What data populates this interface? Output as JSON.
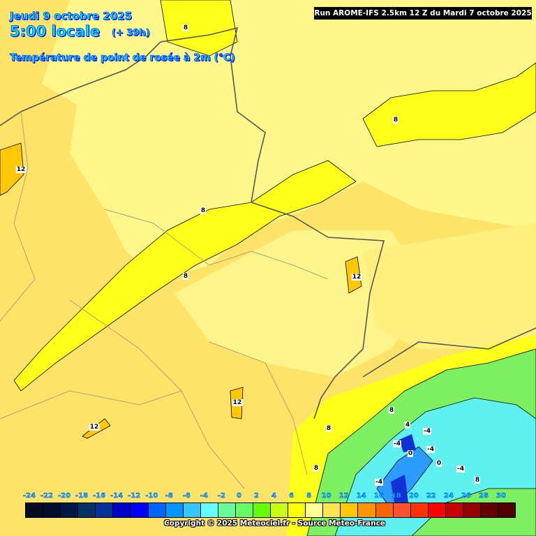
{
  "header": {
    "date": "Jeudi 9 octobre 2025",
    "time": "5:00 locale",
    "lead": "(+ 39h)",
    "variable": "Température de point de rosée à 2m (°C)",
    "run": "Run AROME-IFS 2.5km 12 Z du Mardi 7 octobre 2025"
  },
  "map": {
    "contour_labels": [
      "8",
      "12",
      "8",
      "8",
      "8",
      "12",
      "12",
      "12",
      "8",
      "4",
      "-4",
      "8",
      "-4",
      "0",
      "-4",
      "0",
      "8",
      "-4",
      "-4",
      "8"
    ]
  },
  "legend": {
    "ticks": [
      "-24",
      "-22",
      "-20",
      "-18",
      "-16",
      "-14",
      "-12",
      "-10",
      "-8",
      "-6",
      "-4",
      "-2",
      "0",
      "2",
      "4",
      "6",
      "8",
      "10",
      "12",
      "14",
      "16",
      "18",
      "20",
      "22",
      "24",
      "26",
      "28",
      "30"
    ],
    "colors": [
      "#060a1e",
      "#000c2c",
      "#001848",
      "#003264",
      "#00329a",
      "#0000c8",
      "#0000ff",
      "#0064ff",
      "#0096ff",
      "#32c8ff",
      "#64ffff",
      "#64ff96",
      "#64ff64",
      "#64ff00",
      "#c8ff14",
      "#ffff00",
      "#ffff96",
      "#ffe650",
      "#ffc800",
      "#ff9600",
      "#ff6400",
      "#ff5032",
      "#ff3200",
      "#ff0000",
      "#c80000",
      "#960000",
      "#640000",
      "#500000"
    ]
  },
  "footer": {
    "copyright": "Copyright © 2025 Meteociel.fr - Source Meteo-France"
  }
}
